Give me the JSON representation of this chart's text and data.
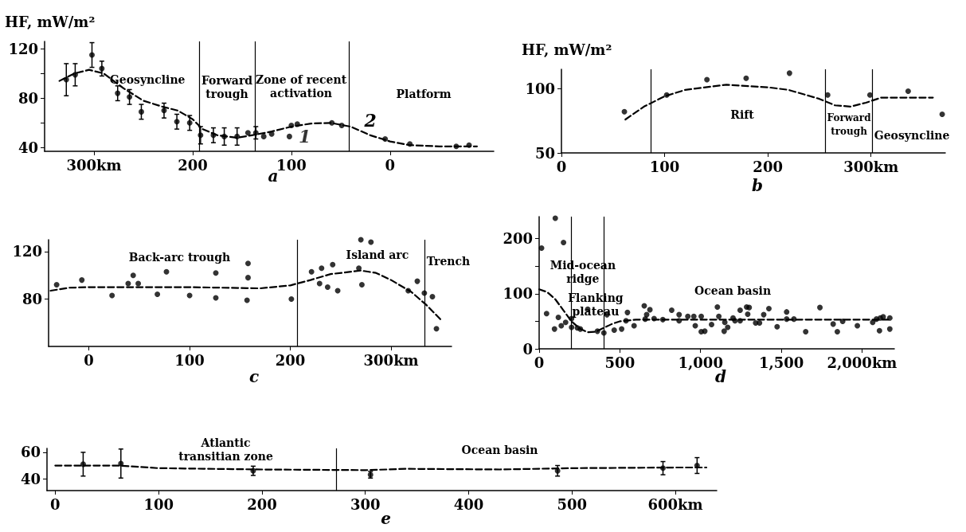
{
  "chart_data": [
    {
      "type": "scatter",
      "title": "a",
      "ylabel": "HF, mW/m²",
      "xlim": [
        350,
        -105
      ],
      "ylim": [
        37,
        126
      ],
      "xticks": [
        {
          "value": 300,
          "label": "300km"
        },
        200,
        100,
        0
      ],
      "yticks": [
        40,
        {
          "value": 60,
          "label": null
        },
        80,
        {
          "value": 100,
          "label": null
        },
        120
      ],
      "series": [
        {
          "name": "1",
          "marker": "circle",
          "color": "#000000",
          "x": [
            328,
            319,
            302,
            292,
            276,
            264,
            252,
            229,
            216,
            203,
            192,
            179,
            168,
            155,
            144,
            136,
            128,
            120,
            102,
            100,
            94,
            59,
            49,
            5,
            -20,
            -67,
            -80
          ],
          "values": [
            95,
            99,
            115,
            104,
            84,
            81,
            69,
            70,
            61,
            60,
            50,
            50,
            49,
            49,
            52,
            52,
            49,
            51,
            49,
            58,
            59,
            60,
            58,
            47,
            43,
            41,
            42
          ],
          "errors": [
            13,
            9,
            10,
            6,
            6,
            6,
            6,
            6,
            6,
            6,
            7,
            6,
            7,
            7,
            null,
            5,
            null,
            null,
            null,
            null,
            null,
            null,
            null,
            null,
            null,
            null,
            null
          ]
        },
        {
          "name": "2",
          "type": "line",
          "marker": "none",
          "line_style": "dashed",
          "color": "#000000",
          "x": [
            335,
            320,
            305,
            290,
            270,
            250,
            230,
            215,
            200,
            190,
            175,
            155,
            140,
            120,
            100,
            80,
            60,
            40,
            20,
            0,
            -20,
            -50,
            -88
          ],
          "values": [
            94,
            100,
            103,
            100,
            88,
            78,
            73,
            70,
            63,
            55,
            50,
            48,
            50,
            53,
            57,
            59.5,
            60,
            57,
            50,
            45,
            42,
            41,
            41
          ]
        }
      ],
      "ref_lines": [
        {
          "axis": "x",
          "value": 193
        },
        {
          "axis": "x",
          "value": 137
        },
        {
          "axis": "x",
          "value": 42
        }
      ],
      "annotations": [
        "Geosyncline",
        "Forward\ntrough",
        "Zone of recent\nactivation",
        "Platform"
      ]
    },
    {
      "type": "scatter",
      "title": "b",
      "ylabel": "HF, mW/m²",
      "xlim": [
        0,
        372
      ],
      "ylim": [
        50,
        115
      ],
      "xticks": [
        0,
        100,
        200,
        {
          "value": 300,
          "label": "300km"
        }
      ],
      "yticks": [
        50,
        100
      ],
      "series": [
        {
          "marker": "circle",
          "color": "#000000",
          "x": [
            61,
            102,
            141,
            179,
            221,
            258,
            299,
            336,
            369
          ],
          "values": [
            82,
            95,
            107,
            108,
            112,
            95,
            95,
            98,
            80
          ]
        },
        {
          "type": "line",
          "marker": "none",
          "line_style": "dashed",
          "color": "#000000",
          "x": [
            62,
            80,
            100,
            120,
            160,
            200,
            220,
            250,
            265,
            280,
            295,
            310,
            340,
            360
          ],
          "values": [
            76,
            86,
            94,
            99,
            103,
            101,
            99,
            92,
            87,
            86,
            89,
            93,
            93,
            93
          ]
        }
      ],
      "ref_lines": [
        {
          "axis": "x",
          "value": 87
        },
        {
          "axis": "x",
          "value": 256
        },
        {
          "axis": "x",
          "value": 301
        }
      ],
      "annotations": [
        "Rift",
        "Forward\ntrough",
        "Geosyncline"
      ]
    },
    {
      "type": "scatter",
      "title": "c",
      "xlim": [
        -40,
        360
      ],
      "ylim": [
        40,
        130
      ],
      "xticks": [
        0,
        100,
        200,
        {
          "value": 300,
          "label": "300km"
        }
      ],
      "yticks": [
        80,
        120
      ],
      "series": [
        {
          "marker": "circle",
          "color": "#000000",
          "x": [
            -32,
            -7,
            23,
            39,
            44,
            49,
            68,
            77,
            100,
            126,
            126,
            158,
            158,
            157,
            201,
            221,
            231,
            229,
            237,
            242,
            247,
            268,
            270,
            271,
            280,
            317,
            326,
            333,
            341,
            345
          ],
          "values": [
            92,
            96,
            83,
            93,
            100,
            93,
            84,
            103,
            83,
            102,
            81,
            110,
            98,
            79,
            80,
            103,
            106,
            93,
            90,
            109,
            87,
            106,
            130,
            92,
            128,
            87,
            95,
            85,
            82,
            55
          ]
        },
        {
          "type": "line",
          "marker": "none",
          "line_style": "dashed",
          "color": "#000000",
          "x": [
            -38,
            -20,
            0,
            100,
            170,
            200,
            220,
            240,
            270,
            285,
            300,
            320,
            335,
            350
          ],
          "values": [
            87,
            89.5,
            90,
            90,
            89,
            91.5,
            96,
            101,
            104,
            102,
            96,
            86,
            75,
            62
          ]
        }
      ],
      "ref_lines": [
        {
          "axis": "x",
          "value": 207
        },
        {
          "axis": "x",
          "value": 333
        }
      ],
      "annotations": [
        "Back-arc trough",
        "Island arc",
        "Trench"
      ]
    },
    {
      "type": "scatter",
      "title": "d",
      "xlim": [
        0,
        2200
      ],
      "ylim": [
        0,
        240
      ],
      "xticks": [
        0,
        500,
        {
          "value": 1000,
          "label": "1,000"
        },
        {
          "value": 1500,
          "label": "1,500"
        },
        {
          "value": 2000,
          "label": "2,000km"
        }
      ],
      "yticks": [
        0,
        {
          "value": 50,
          "label": null
        },
        100,
        {
          "value": 150,
          "label": null
        },
        200
      ],
      "series": [
        {
          "marker": "circle",
          "color": "#000000",
          "x": [
            15,
            46,
            100,
            95,
            119,
            151,
            137,
            164,
            201,
            201,
            237,
            255,
            301,
            361,
            401,
            420,
            465,
            511,
            538,
            547,
            588,
            651,
            666,
            686,
            657,
            712,
            766,
            821,
            867,
            867,
            921,
            958,
            967,
            1004,
            1004,
            1026,
            1068,
            1104,
            1113,
            1150,
            1146,
            1168,
            1201,
            1213,
            1245,
            1245,
            1285,
            1301,
            1292,
            1341,
            1365,
            1391,
            1423,
            1474,
            1533,
            1533,
            1578,
            1651,
            1739,
            1821,
            1847,
            1880,
            1971,
            2066,
            2089,
            2113,
            2131,
            2108,
            2172,
            2172
          ],
          "values": [
            183,
            64,
            237,
            36,
            57,
            193,
            42,
            48,
            55,
            39,
            38,
            36,
            72,
            32,
            29,
            62,
            34,
            36,
            51,
            66,
            42,
            78,
            62,
            71,
            54,
            55,
            53,
            70,
            62,
            51,
            59,
            59,
            42,
            59,
            31,
            32,
            44,
            76,
            59,
            48,
            32,
            39,
            56,
            51,
            70,
            51,
            76,
            75,
            63,
            47,
            47,
            62,
            73,
            40,
            67,
            54,
            54,
            31,
            75,
            45,
            31,
            50,
            42,
            48,
            54,
            56,
            58,
            33,
            56,
            36
          ]
        },
        {
          "type": "line",
          "marker": "none",
          "line_style": "dashed",
          "color": "#000000",
          "x": [
            0,
            50,
            100,
            150,
            200,
            250,
            300,
            350,
            400,
            450,
            500,
            600,
            700,
            1000,
            1500,
            2000,
            2180
          ],
          "values": [
            108,
            103,
            90,
            70,
            50,
            37,
            30,
            31,
            38,
            45,
            50,
            53,
            53,
            53,
            53,
            53,
            53
          ]
        }
      ],
      "ref_lines": [
        {
          "axis": "x",
          "value": 200
        },
        {
          "axis": "x",
          "value": 400
        }
      ],
      "annotations": [
        "Mid-ocean\nridge",
        "Flanking\nplateau",
        "Ocean basin"
      ]
    },
    {
      "type": "scatter",
      "title": "e",
      "xlim": [
        -8,
        640
      ],
      "ylim": [
        31,
        63
      ],
      "xticks": [
        0,
        100,
        200,
        300,
        400,
        500,
        {
          "value": 600,
          "label": "600km"
        }
      ],
      "yticks": [
        40,
        60
      ],
      "series": [
        {
          "marker": "circle",
          "color": "#000000",
          "x": [
            27,
            63.5,
            191.5,
            305,
            486,
            588,
            621
          ],
          "values": [
            51,
            51.5,
            46,
            43,
            46,
            48,
            50
          ],
          "errors": [
            9,
            11,
            3.5,
            2.5,
            4,
            5,
            6
          ]
        },
        {
          "type": "line",
          "marker": "none",
          "line_style": "dashed",
          "color": "#000000",
          "x": [
            0,
            60,
            100,
            200,
            300,
            340,
            430,
            500,
            600,
            630
          ],
          "values": [
            50,
            50,
            48,
            47,
            46.5,
            47.5,
            47,
            48,
            48.5,
            48.5
          ]
        }
      ],
      "ref_lines": [
        {
          "axis": "x",
          "value": 272
        }
      ],
      "annotations": [
        "Atlantic\ntransitian zone",
        "Ocean basin"
      ]
    }
  ]
}
